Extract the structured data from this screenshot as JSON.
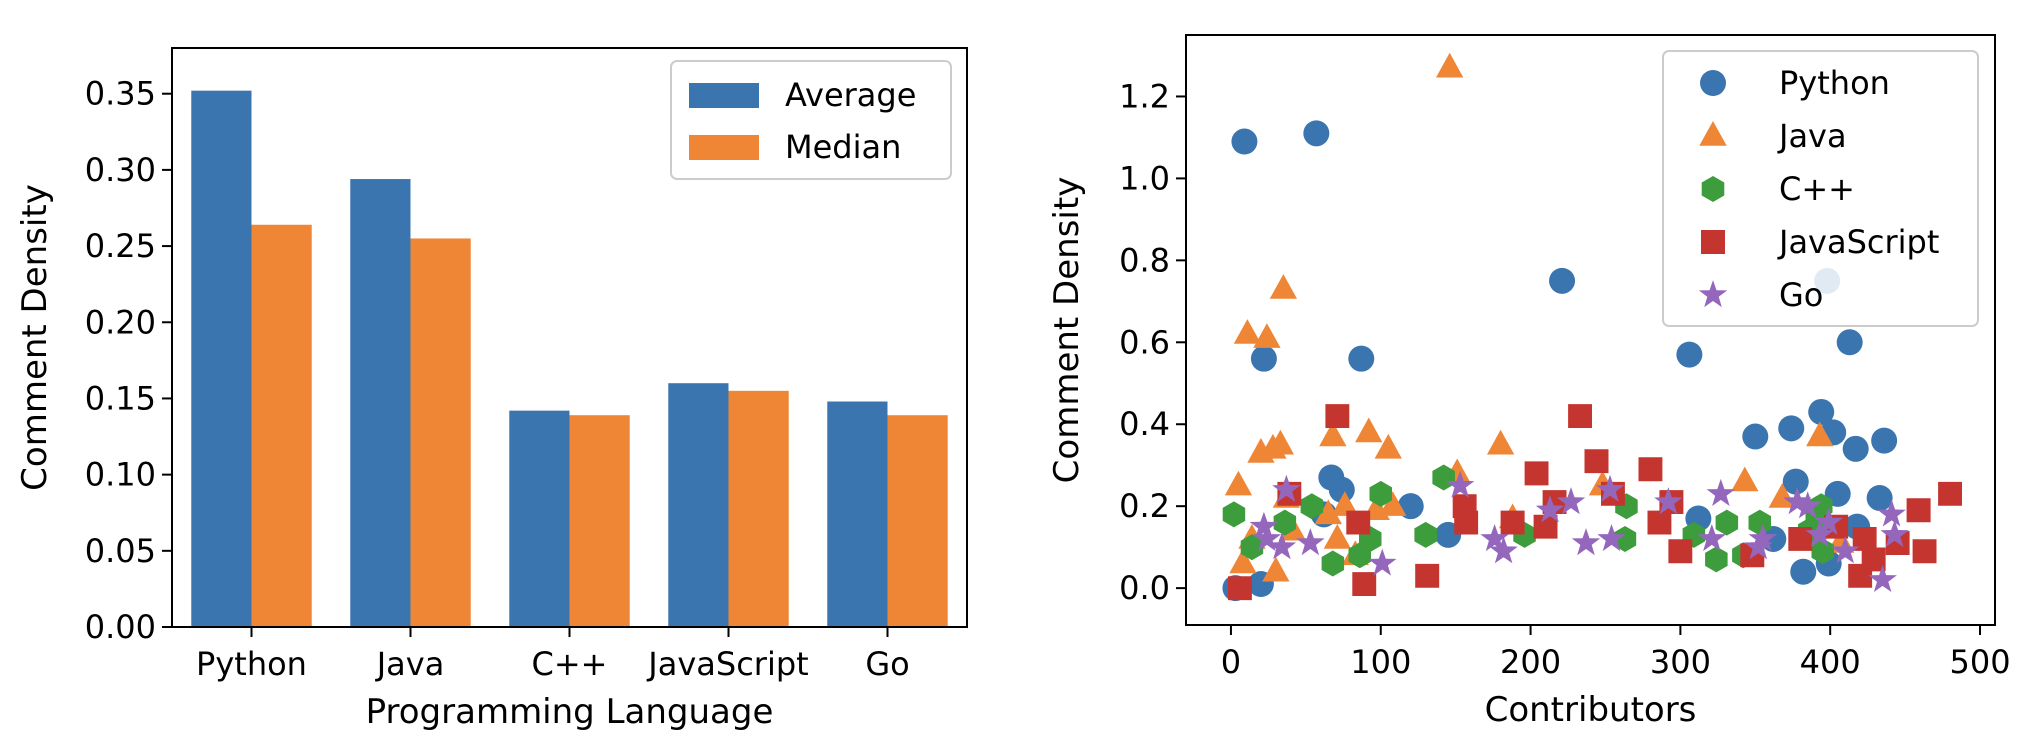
{
  "chart_data": [
    {
      "type": "bar",
      "xlabel": "Programming Language",
      "ylabel": "Comment Density",
      "categories": [
        "Python",
        "Java",
        "C++",
        "JavaScript",
        "Go"
      ],
      "series": [
        {
          "name": "Average",
          "color": "#3b75af",
          "values": [
            0.352,
            0.294,
            0.142,
            0.16,
            0.148
          ]
        },
        {
          "name": "Median",
          "color": "#ef8636",
          "values": [
            0.264,
            0.255,
            0.139,
            0.155,
            0.139
          ]
        }
      ],
      "ylim": [
        0,
        0.38
      ],
      "yticks": [
        0.0,
        0.05,
        0.1,
        0.15,
        0.2,
        0.25,
        0.3,
        0.35
      ],
      "ytick_labels": [
        "0.00",
        "0.05",
        "0.10",
        "0.15",
        "0.20",
        "0.25",
        "0.30",
        "0.35"
      ],
      "legend_position": "top-right",
      "grid": false
    },
    {
      "type": "scatter",
      "xlabel": "Contributors",
      "ylabel": "Comment Density",
      "xlim": [
        -30,
        510
      ],
      "ylim": [
        -0.09,
        1.35
      ],
      "xticks": [
        0,
        100,
        200,
        300,
        400,
        500
      ],
      "xtick_labels": [
        "0",
        "100",
        "200",
        "300",
        "400",
        "500"
      ],
      "yticks": [
        0.0,
        0.2,
        0.4,
        0.6,
        0.8,
        1.0,
        1.2
      ],
      "ytick_labels": [
        "0.0",
        "0.2",
        "0.4",
        "0.6",
        "0.8",
        "1.0",
        "1.2"
      ],
      "legend_position": "top-right",
      "grid": false,
      "series": [
        {
          "name": "Python",
          "marker": "circle",
          "color": "#3b75af",
          "points": [
            [
              3,
              0.0
            ],
            [
              9,
              1.09
            ],
            [
              20,
              0.01
            ],
            [
              22,
              0.56
            ],
            [
              57,
              1.11
            ],
            [
              62,
              0.18
            ],
            [
              67,
              0.27
            ],
            [
              74,
              0.24
            ],
            [
              87,
              0.56
            ],
            [
              120,
              0.2
            ],
            [
              145,
              0.13
            ],
            [
              221,
              0.75
            ],
            [
              306,
              0.57
            ],
            [
              312,
              0.17
            ],
            [
              350,
              0.37
            ],
            [
              362,
              0.12
            ],
            [
              374,
              0.39
            ],
            [
              377,
              0.26
            ],
            [
              382,
              0.04
            ],
            [
              394,
              0.43
            ],
            [
              398,
              0.75
            ],
            [
              399,
              0.06
            ],
            [
              402,
              0.38
            ],
            [
              405,
              0.23
            ],
            [
              413,
              0.6
            ],
            [
              417,
              0.34
            ],
            [
              418,
              0.15
            ],
            [
              433,
              0.22
            ],
            [
              436,
              0.36
            ]
          ]
        },
        {
          "name": "Java",
          "marker": "triangle",
          "color": "#ef8636",
          "points": [
            [
              5,
              0.25
            ],
            [
              8,
              0.06
            ],
            [
              11,
              0.62
            ],
            [
              14,
              0.12
            ],
            [
              20,
              0.33
            ],
            [
              24,
              0.61
            ],
            [
              28,
              0.34
            ],
            [
              30,
              0.04
            ],
            [
              33,
              0.35
            ],
            [
              35,
              0.73
            ],
            [
              37,
              0.22
            ],
            [
              41,
              0.14
            ],
            [
              65,
              0.18
            ],
            [
              68,
              0.37
            ],
            [
              71,
              0.12
            ],
            [
              76,
              0.2
            ],
            [
              83,
              0.08
            ],
            [
              92,
              0.38
            ],
            [
              97,
              0.19
            ],
            [
              105,
              0.34
            ],
            [
              108,
              0.2
            ],
            [
              146,
              1.27
            ],
            [
              151,
              0.28
            ],
            [
              180,
              0.35
            ],
            [
              188,
              0.17
            ],
            [
              248,
              0.25
            ],
            [
              343,
              0.26
            ],
            [
              368,
              0.22
            ],
            [
              393,
              0.37
            ],
            [
              407,
              0.11
            ]
          ]
        },
        {
          "name": "C++",
          "marker": "hexagon",
          "color": "#3d9d3d",
          "points": [
            [
              2,
              0.18
            ],
            [
              14,
              0.1
            ],
            [
              36,
              0.16
            ],
            [
              54,
              0.2
            ],
            [
              68,
              0.06
            ],
            [
              86,
              0.08
            ],
            [
              93,
              0.12
            ],
            [
              100,
              0.23
            ],
            [
              130,
              0.13
            ],
            [
              142,
              0.27
            ],
            [
              196,
              0.13
            ],
            [
              263,
              0.12
            ],
            [
              264,
              0.2
            ],
            [
              309,
              0.13
            ],
            [
              324,
              0.07
            ],
            [
              331,
              0.16
            ],
            [
              342,
              0.08
            ],
            [
              353,
              0.16
            ],
            [
              386,
              0.14
            ],
            [
              391,
              0.17
            ],
            [
              394,
              0.2
            ],
            [
              395,
              0.09
            ]
          ]
        },
        {
          "name": "JavaScript",
          "marker": "square",
          "color": "#c4352f",
          "points": [
            [
              6,
              0.0
            ],
            [
              39,
              0.23
            ],
            [
              71,
              0.42
            ],
            [
              85,
              0.16
            ],
            [
              89,
              0.01
            ],
            [
              131,
              0.03
            ],
            [
              156,
              0.2
            ],
            [
              157,
              0.16
            ],
            [
              188,
              0.16
            ],
            [
              204,
              0.28
            ],
            [
              210,
              0.15
            ],
            [
              216,
              0.21
            ],
            [
              233,
              0.42
            ],
            [
              244,
              0.31
            ],
            [
              255,
              0.23
            ],
            [
              280,
              0.29
            ],
            [
              286,
              0.16
            ],
            [
              294,
              0.21
            ],
            [
              300,
              0.09
            ],
            [
              348,
              0.08
            ],
            [
              380,
              0.12
            ],
            [
              404,
              0.15
            ],
            [
              420,
              0.03
            ],
            [
              423,
              0.12
            ],
            [
              429,
              0.07
            ],
            [
              445,
              0.11
            ],
            [
              459,
              0.19
            ],
            [
              463,
              0.09
            ],
            [
              480,
              0.23
            ]
          ]
        },
        {
          "name": "Go",
          "marker": "star",
          "color": "#9467bd",
          "points": [
            [
              22,
              0.15
            ],
            [
              24,
              0.12
            ],
            [
              34,
              0.1
            ],
            [
              37,
              0.24
            ],
            [
              53,
              0.11
            ],
            [
              101,
              0.06
            ],
            [
              153,
              0.25
            ],
            [
              176,
              0.12
            ],
            [
              182,
              0.09
            ],
            [
              213,
              0.19
            ],
            [
              227,
              0.21
            ],
            [
              237,
              0.11
            ],
            [
              253,
              0.24
            ],
            [
              254,
              0.12
            ],
            [
              292,
              0.21
            ],
            [
              321,
              0.12
            ],
            [
              327,
              0.23
            ],
            [
              352,
              0.1
            ],
            [
              355,
              0.12
            ],
            [
              378,
              0.21
            ],
            [
              385,
              0.2
            ],
            [
              393,
              0.13
            ],
            [
              399,
              0.16
            ],
            [
              410,
              0.09
            ],
            [
              435,
              0.02
            ],
            [
              441,
              0.18
            ],
            [
              443,
              0.13
            ]
          ]
        }
      ]
    }
  ]
}
